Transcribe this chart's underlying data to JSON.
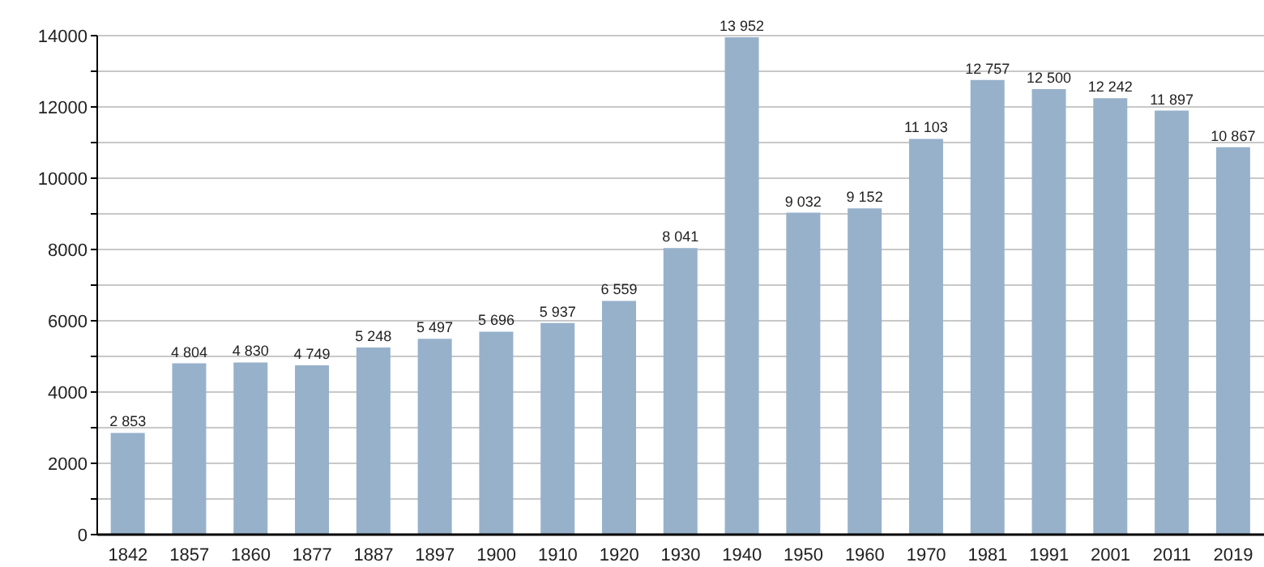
{
  "chart_data": {
    "type": "bar",
    "categories": [
      "1842",
      "1857",
      "1860",
      "1877",
      "1887",
      "1897",
      "1900",
      "1910",
      "1920",
      "1930",
      "1940",
      "1950",
      "1960",
      "1970",
      "1981",
      "1991",
      "2001",
      "2011",
      "2019"
    ],
    "values": [
      2853,
      4804,
      4830,
      4749,
      5248,
      5497,
      5696,
      5937,
      6559,
      8041,
      13952,
      9032,
      9152,
      11103,
      12757,
      12500,
      12242,
      11897,
      10867
    ],
    "value_labels": [
      "2 853",
      "4 804",
      "4 830",
      "4 749",
      "5 248",
      "5 497",
      "5 696",
      "5 937",
      "6 559",
      "8 041",
      "13 952",
      "9 032",
      "9 152",
      "11 103",
      "12 757",
      "12 500",
      "12 242",
      "11 897",
      "10 867"
    ],
    "color": "#97b1cb",
    "ylim": [
      0,
      14000
    ],
    "yticks": [
      0,
      {
        "value": 1000,
        "label": null
      },
      2000,
      {
        "value": 3000,
        "label": null
      },
      4000,
      {
        "value": 5000,
        "label": null
      },
      6000,
      {
        "value": 7000,
        "label": null
      },
      8000,
      {
        "value": 9000,
        "label": null
      },
      10000,
      {
        "value": 11000,
        "label": null
      },
      12000,
      {
        "value": 13000,
        "label": null
      },
      14000
    ],
    "grid": "y"
  }
}
